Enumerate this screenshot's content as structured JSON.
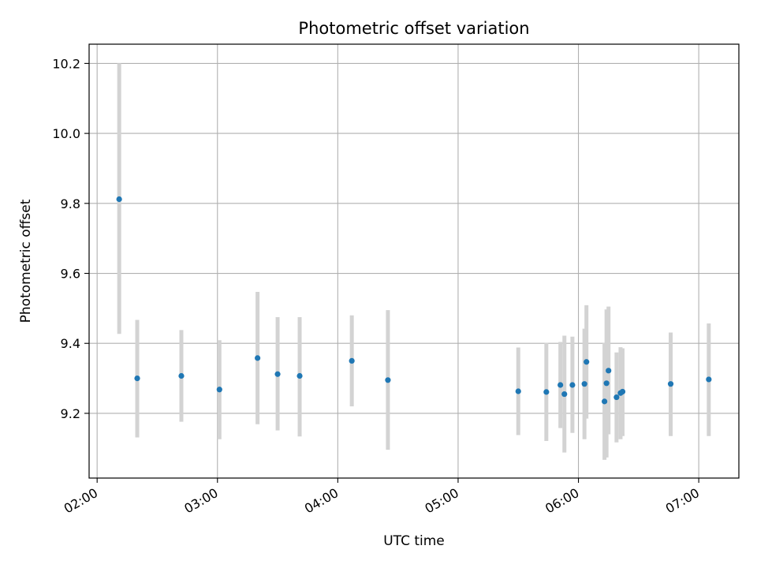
{
  "chart_data": {
    "type": "scatter",
    "title": "Photometric offset variation",
    "xlabel": "UTC time",
    "ylabel": "Photometric offset",
    "x_axis": {
      "type": "time",
      "range": [
        "01:56",
        "07:20"
      ],
      "ticks": [
        "02:00",
        "03:00",
        "04:00",
        "05:00",
        "06:00",
        "07:00"
      ]
    },
    "y_axis": {
      "range": [
        9.015,
        10.255
      ],
      "ticks": [
        9.2,
        9.4,
        9.6,
        9.8,
        10.0,
        10.2
      ],
      "tick_labels": [
        "9.2",
        "9.4",
        "9.6",
        "9.8",
        "10.0",
        "10.2"
      ]
    },
    "grid": true,
    "point_color": "#1f77b4",
    "errorbar_color": "#d3d3d3",
    "points": [
      {
        "time": "02:11",
        "y": 9.812,
        "ylo": 9.427,
        "yhi": 10.2
      },
      {
        "time": "02:20",
        "y": 9.3,
        "ylo": 9.131,
        "yhi": 9.467
      },
      {
        "time": "02:42",
        "y": 9.307,
        "ylo": 9.176,
        "yhi": 9.438
      },
      {
        "time": "03:01",
        "y": 9.268,
        "ylo": 9.126,
        "yhi": 9.409
      },
      {
        "time": "03:20",
        "y": 9.358,
        "ylo": 9.169,
        "yhi": 9.547
      },
      {
        "time": "03:30",
        "y": 9.312,
        "ylo": 9.151,
        "yhi": 9.475
      },
      {
        "time": "03:41",
        "y": 9.307,
        "ylo": 9.134,
        "yhi": 9.475
      },
      {
        "time": "04:07",
        "y": 9.35,
        "ylo": 9.22,
        "yhi": 9.48
      },
      {
        "time": "04:25",
        "y": 9.295,
        "ylo": 9.096,
        "yhi": 9.495
      },
      {
        "time": "05:30",
        "y": 9.263,
        "ylo": 9.138,
        "yhi": 9.388
      },
      {
        "time": "05:44",
        "y": 9.261,
        "ylo": 9.121,
        "yhi": 9.401
      },
      {
        "time": "05:51",
        "y": 9.281,
        "ylo": 9.158,
        "yhi": 9.404
      },
      {
        "time": "05:53",
        "y": 9.255,
        "ylo": 9.088,
        "yhi": 9.422
      },
      {
        "time": "05:57",
        "y": 9.281,
        "ylo": 9.144,
        "yhi": 9.419
      },
      {
        "time": "06:03",
        "y": 9.284,
        "ylo": 9.126,
        "yhi": 9.442
      },
      {
        "time": "06:04",
        "y": 9.347,
        "ylo": 9.185,
        "yhi": 9.509
      },
      {
        "time": "06:13",
        "y": 9.234,
        "ylo": 9.067,
        "yhi": 9.401
      },
      {
        "time": "06:14",
        "y": 9.286,
        "ylo": 9.074,
        "yhi": 9.497
      },
      {
        "time": "06:15",
        "y": 9.322,
        "ylo": 9.14,
        "yhi": 9.505
      },
      {
        "time": "06:19",
        "y": 9.246,
        "ylo": 9.117,
        "yhi": 9.374
      },
      {
        "time": "06:21",
        "y": 9.258,
        "ylo": 9.126,
        "yhi": 9.389
      },
      {
        "time": "06:22",
        "y": 9.262,
        "ylo": 9.135,
        "yhi": 9.386
      },
      {
        "time": "06:46",
        "y": 9.284,
        "ylo": 9.135,
        "yhi": 9.431
      },
      {
        "time": "07:05",
        "y": 9.297,
        "ylo": 9.135,
        "yhi": 9.457
      }
    ]
  }
}
